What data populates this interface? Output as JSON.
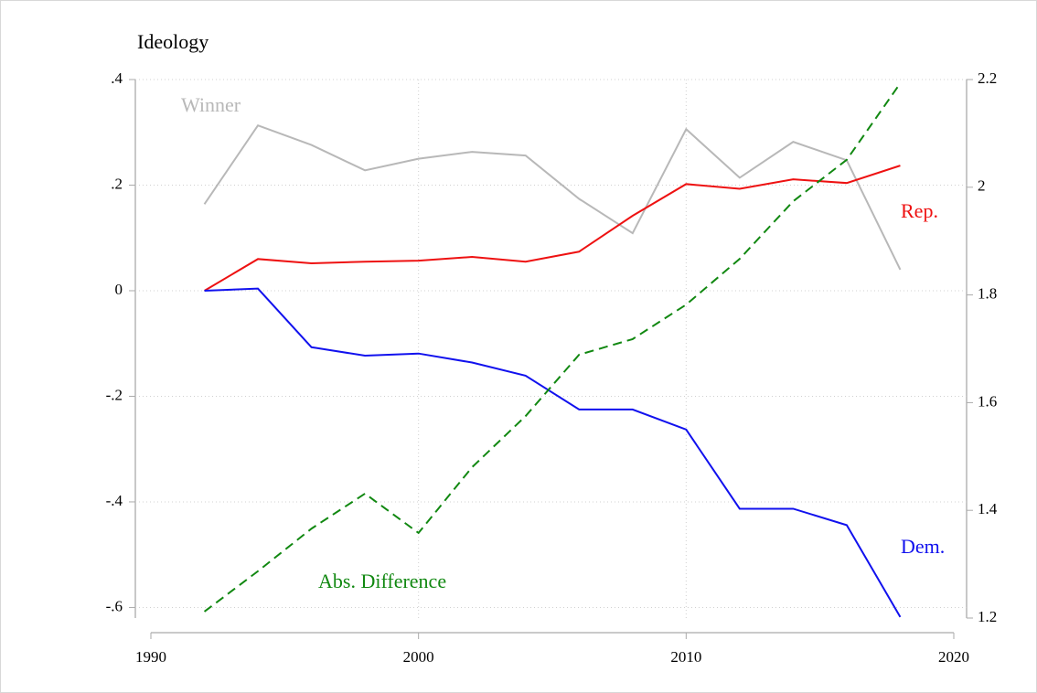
{
  "chart_data": {
    "type": "line",
    "y_label": "Ideology",
    "x": [
      1992,
      1994,
      1996,
      1998,
      2000,
      2002,
      2004,
      2006,
      2008,
      2010,
      2012,
      2014,
      2016,
      2018
    ],
    "xlim": [
      1990,
      2020
    ],
    "xticks": [
      1990,
      2000,
      2010,
      2020
    ],
    "ylim": [
      -0.62,
      0.4
    ],
    "yticks": [
      {
        "value": 0.4,
        "label": ".4"
      },
      {
        "value": 0.2,
        "label": ".2"
      },
      0,
      {
        "value": -0.2,
        "label": "-.2"
      },
      {
        "value": -0.4,
        "label": "-.4"
      },
      {
        "value": -0.6,
        "label": "-.6"
      }
    ],
    "y2lim": [
      1.2,
      2.2
    ],
    "y2ticks": [
      2.2,
      2,
      1.8,
      1.6,
      1.4,
      1.2
    ],
    "grid": true,
    "series": [
      {
        "name": "Winner",
        "color": "#b8b8b8",
        "values": [
          0.164,
          0.313,
          0.276,
          0.228,
          0.25,
          0.263,
          0.256,
          0.174,
          0.109,
          0.306,
          0.214,
          0.282,
          0.247,
          0.04
        ]
      },
      {
        "name": "Rep.",
        "color": "#ee1111",
        "values": [
          0,
          0.06,
          0.052,
          0.055,
          0.057,
          0.064,
          0.055,
          0.074,
          0.142,
          0.202,
          0.193,
          0.211,
          0.204,
          0.237
        ]
      },
      {
        "name": "Dem.",
        "color": "#1111ee",
        "values": [
          0,
          0.004,
          -0.107,
          -0.123,
          -0.119,
          -0.136,
          -0.161,
          -0.225,
          -0.225,
          -0.263,
          -0.413,
          -0.413,
          -0.444,
          -0.618
        ]
      },
      {
        "name": "Abs. Difference",
        "color": "#118811",
        "dashed": true,
        "axis": "y2",
        "values": [
          1.212,
          1.287,
          1.366,
          1.431,
          1.358,
          1.48,
          1.575,
          1.689,
          1.718,
          1.782,
          1.867,
          1.974,
          2.051,
          2.193
        ]
      }
    ]
  }
}
